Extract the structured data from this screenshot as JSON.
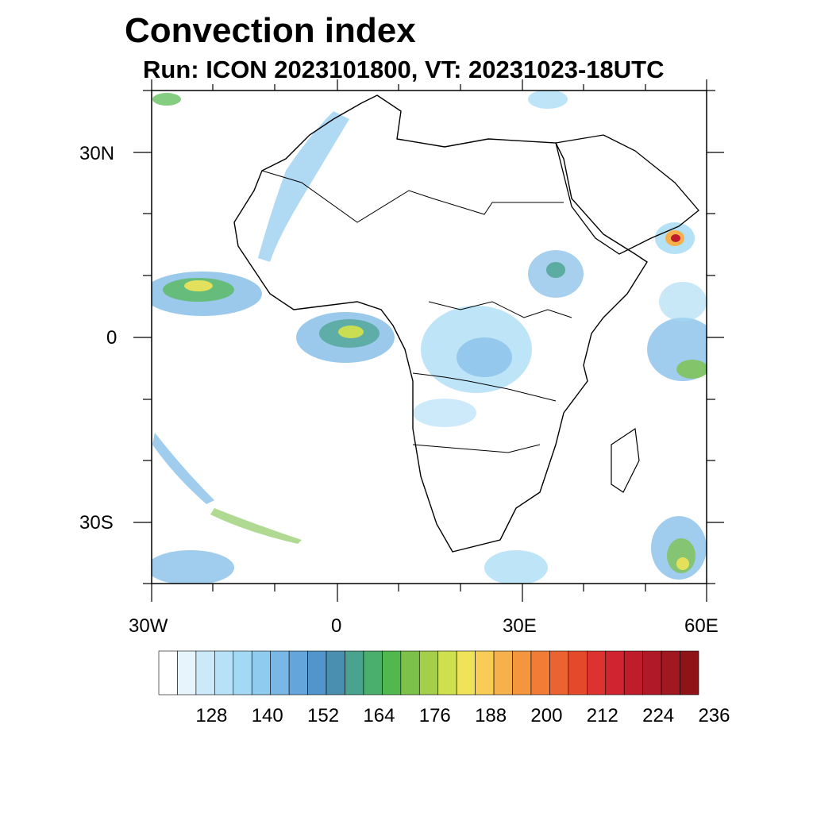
{
  "title": "Convection index",
  "subtitle": "Run: ICON 2023101800,  VT: 20231023-18UTC",
  "axes": {
    "lon_labels": [
      "30W",
      "0",
      "30E",
      "60E"
    ],
    "lat_labels": [
      "30N",
      "0",
      "30S"
    ]
  },
  "colorbar": {
    "labels": [
      "128",
      "140",
      "152",
      "164",
      "176",
      "188",
      "200",
      "212",
      "224",
      "236"
    ],
    "colors": [
      "#ffffff",
      "#e6f4fc",
      "#cbe9f8",
      "#b7e1f6",
      "#a3d9f4",
      "#8ecbef",
      "#78b7e6",
      "#64a6dc",
      "#5294cc",
      "#4a8fb0",
      "#4aa38f",
      "#4aaf6c",
      "#50b84c",
      "#7cc24a",
      "#a5cf4a",
      "#cfe04e",
      "#f0e35a",
      "#f8cc55",
      "#f6b04c",
      "#f49640",
      "#f07c35",
      "#ea6330",
      "#e4492c",
      "#dc3330",
      "#d02530",
      "#c01d2c",
      "#b01a28",
      "#a01820",
      "#8e1418"
    ]
  }
}
